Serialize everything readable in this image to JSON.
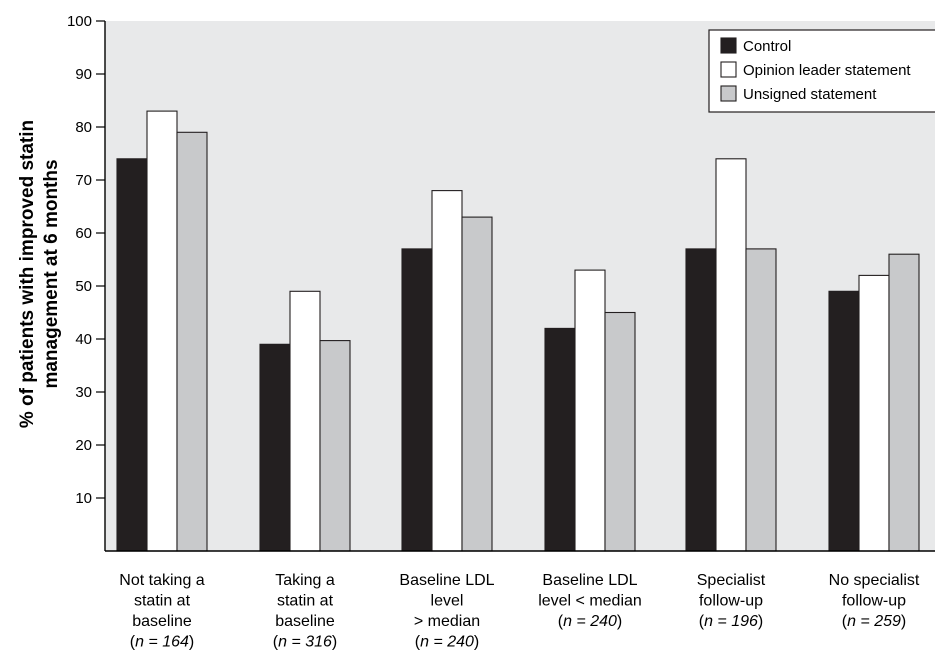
{
  "chart_data": {
    "type": "bar",
    "title": "",
    "xlabel": "",
    "ylabel_lines": [
      "% of patients with improved statin",
      "management at 6 months"
    ],
    "ylim": [
      0,
      100
    ],
    "yticks": [
      10,
      20,
      30,
      40,
      50,
      60,
      70,
      80,
      90,
      100
    ],
    "grid": false,
    "legend_position": "top-right",
    "categories": [
      {
        "lines": [
          "Not taking a",
          "statin at",
          "baseline"
        ],
        "n": "164"
      },
      {
        "lines": [
          "Taking a",
          "statin at",
          "baseline"
        ],
        "n": "316"
      },
      {
        "lines": [
          "Baseline LDL",
          "level",
          "> median"
        ],
        "n": "240"
      },
      {
        "lines": [
          "Baseline LDL",
          "level < median"
        ],
        "n": "240"
      },
      {
        "lines": [
          "Specialist",
          "follow-up"
        ],
        "n": "196"
      },
      {
        "lines": [
          "No specialist",
          "follow-up"
        ],
        "n": "259"
      }
    ],
    "series": [
      {
        "name": "Control",
        "color": "#231f20",
        "values": [
          74,
          39,
          57,
          42,
          57,
          49
        ]
      },
      {
        "name": "Opinion leader statement",
        "color": "#ffffff",
        "values": [
          83,
          49,
          68,
          53,
          74,
          52
        ]
      },
      {
        "name": "Unsigned statement",
        "color": "#c8c9cb",
        "values": [
          79,
          39.7,
          63,
          45,
          57,
          56
        ]
      }
    ],
    "plot_background": "#e8e9ea"
  }
}
